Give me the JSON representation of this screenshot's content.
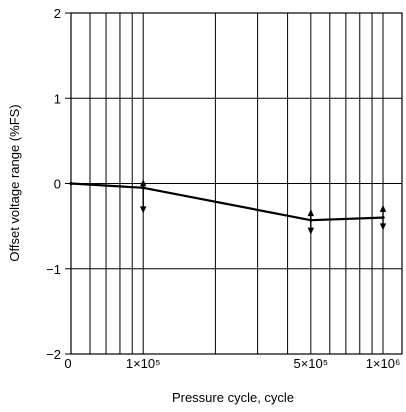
{
  "chart_data": {
    "type": "line",
    "xlabel": "Pressure cycle, cycle",
    "ylabel": "Offset voltage range (%FS)",
    "x_scale": "log",
    "xlim": [
      50000,
      1200000
    ],
    "ylim": [
      -2,
      2
    ],
    "grid": true,
    "y_ticks": [
      {
        "value": 2,
        "label": "2"
      },
      {
        "value": 1,
        "label": "1"
      },
      {
        "value": 0,
        "label": "0"
      },
      {
        "value": -1,
        "label": "−1"
      },
      {
        "value": -2,
        "label": "−2"
      }
    ],
    "x_ticks": [
      {
        "value": 50000,
        "label": "0"
      },
      {
        "value": 100000,
        "label": "1×10⁵"
      },
      {
        "value": 500000,
        "label": "5×10⁵"
      },
      {
        "value": 1000000,
        "label": "1×10⁶"
      }
    ],
    "series": [
      {
        "points": [
          {
            "x": 50000,
            "y": 0.0
          },
          {
            "x": 100000,
            "y": -0.05
          },
          {
            "x": 500000,
            "y": -0.43
          },
          {
            "x": 1000000,
            "y": -0.4
          }
        ]
      }
    ],
    "error_bars": [
      {
        "x": 100000,
        "low": -0.35,
        "high": 0.05
      },
      {
        "x": 500000,
        "low": -0.6,
        "high": -0.3
      },
      {
        "x": 1000000,
        "low": -0.55,
        "high": -0.25
      }
    ]
  }
}
